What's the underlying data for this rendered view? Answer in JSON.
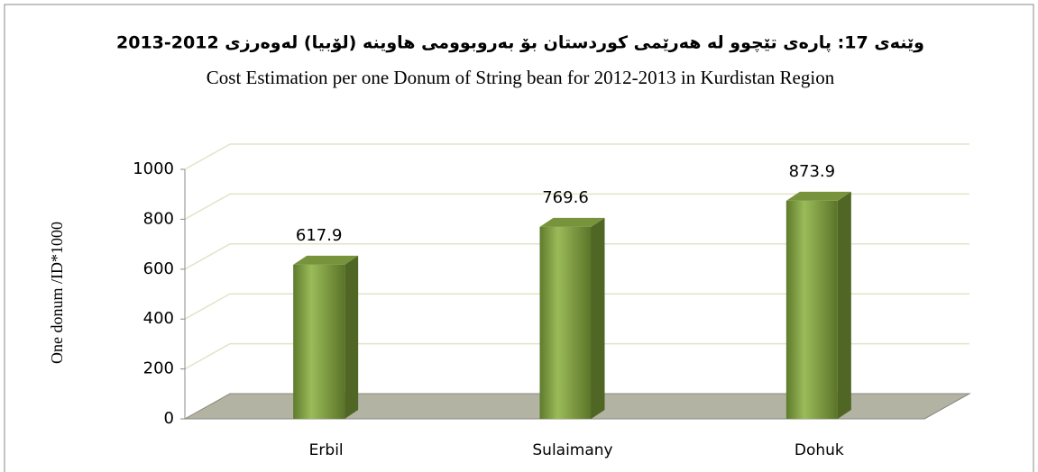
{
  "chart_data": {
    "type": "bar",
    "title": "وێنەی 17: پارەی تێچوو لە هەرێمی کوردستان بۆ بەروبوومی هاوینە (لۆبیا) لەوەرزی 2012-2013",
    "subtitle": "Cost Estimation per one Donum of String bean  for 2012-2013 in Kurdistan Region",
    "y_label": "One donum /ID*1000",
    "categories": [
      "Erbil",
      "Sulaimany",
      "Dohuk"
    ],
    "values": [
      617.9,
      769.6,
      873.9
    ],
    "color": "#77933c",
    "ylim": [
      0,
      1000
    ],
    "yticks": [
      0,
      200,
      400,
      600,
      800,
      1000
    ],
    "grid": true
  }
}
